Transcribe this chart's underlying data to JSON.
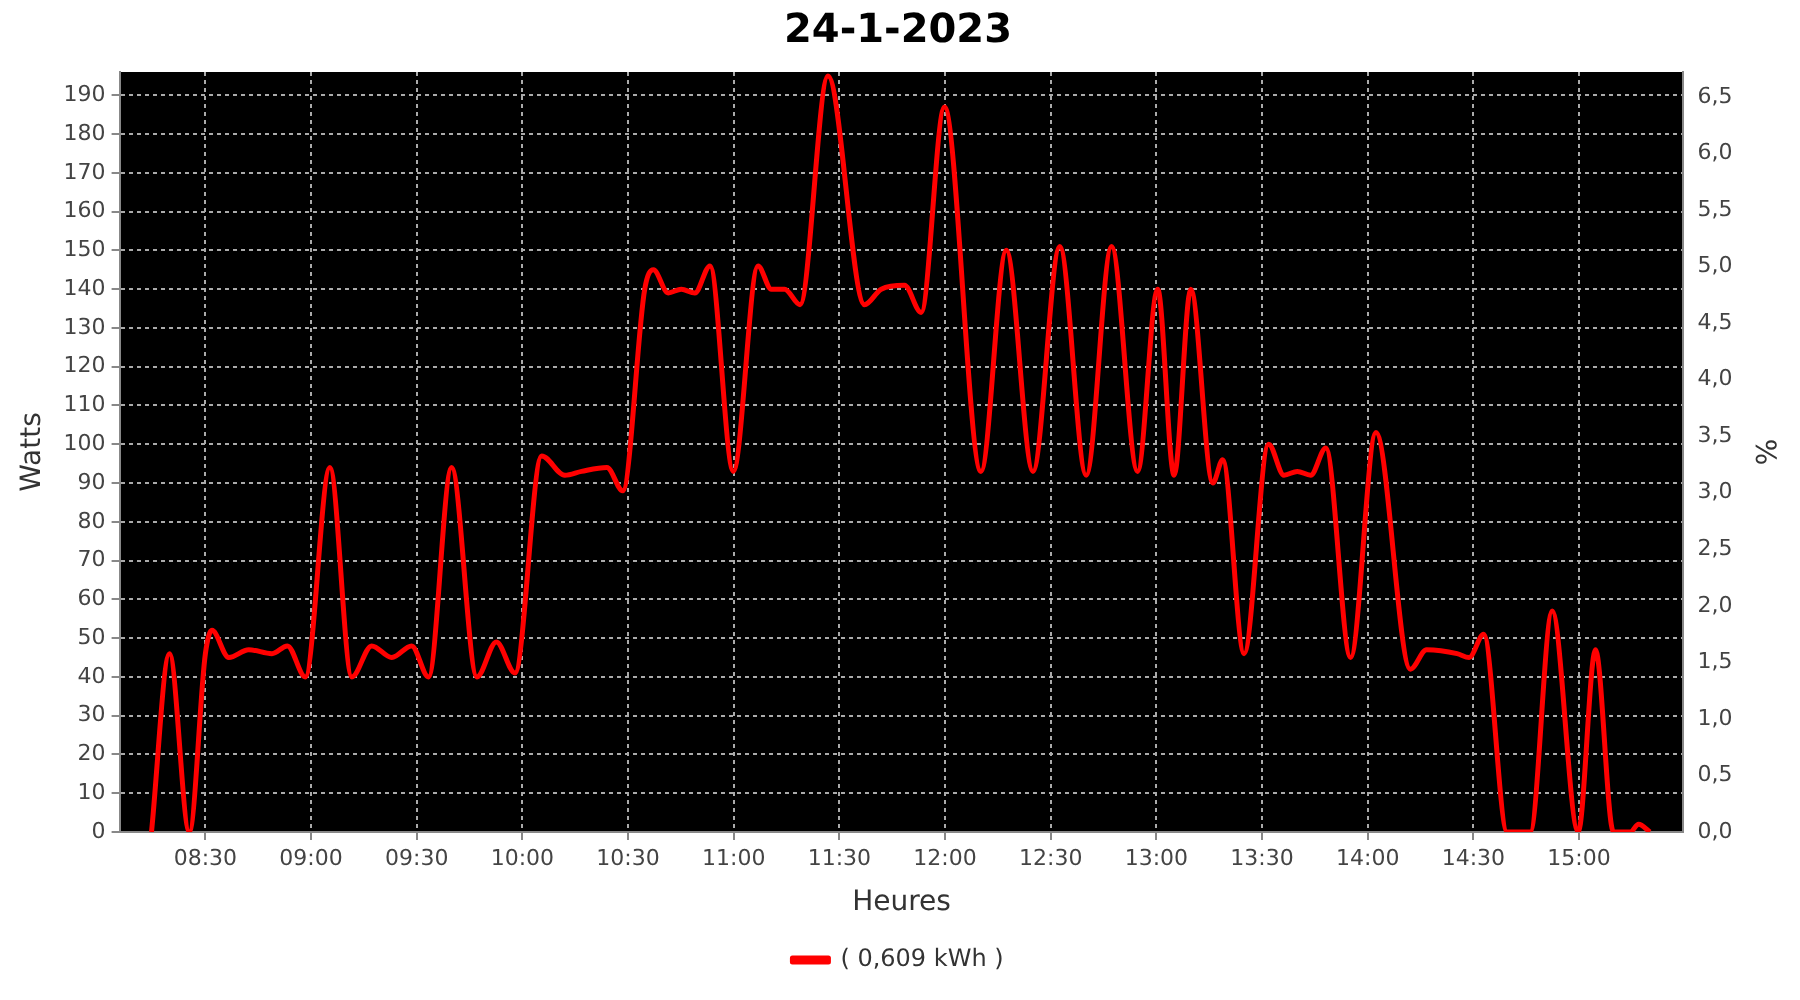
{
  "chart_data": {
    "type": "line",
    "title": "24-1-2023",
    "xlabel": "Heures",
    "ylabel": "Watts",
    "y2label": "%",
    "x": [
      8.245,
      8.33,
      8.424,
      8.5,
      8.531,
      8.611,
      8.705,
      8.815,
      8.888,
      8.973,
      9.089,
      9.193,
      9.287,
      9.382,
      9.476,
      9.556,
      9.665,
      9.785,
      9.877,
      9.965,
      10.091,
      10.201,
      10.28,
      10.4,
      10.475,
      10.579,
      10.62,
      10.69,
      10.752,
      10.816,
      10.888,
      10.998,
      11.115,
      11.178,
      11.241,
      11.314,
      11.446,
      11.619,
      11.698,
      11.808,
      11.887,
      11.997,
      12.17,
      12.29,
      12.416,
      12.543,
      12.668,
      12.788,
      12.911,
      13.006,
      13.084,
      13.163,
      13.267,
      13.314,
      13.415,
      13.531,
      13.604,
      13.667,
      13.73,
      13.802,
      13.919,
      14.039,
      14.202,
      14.279,
      14.423,
      14.48,
      14.549,
      14.66,
      14.707,
      14.769,
      14.873,
      14.996,
      15.078,
      15.163,
      15.242,
      15.282,
      15.336
    ],
    "series": [
      {
        "name": "( 0,609 kWh )",
        "color": "#ff0000",
        "values": [
          0,
          46,
          0,
          46,
          52,
          45,
          47,
          46,
          48,
          40,
          94,
          40,
          48,
          45,
          48,
          40,
          94,
          40,
          49,
          41,
          97,
          92,
          93,
          94,
          88,
          140,
          145,
          139,
          140,
          139,
          146,
          93,
          146,
          140,
          140,
          136,
          195,
          136,
          140,
          141,
          134,
          187,
          93,
          150,
          93,
          151,
          92,
          151,
          93,
          140,
          92,
          140,
          90,
          96,
          46,
          100,
          92,
          93,
          92,
          99,
          45,
          103,
          42,
          47,
          46,
          45,
          51,
          0,
          0,
          0,
          57,
          0,
          47,
          0,
          0,
          2,
          0
        ]
      }
    ],
    "xlim": [
      8.094,
      15.494
    ],
    "xticks": [
      {
        "value": 8.5,
        "label": "08:30"
      },
      {
        "value": 9,
        "label": "09:00"
      },
      {
        "value": 9.5,
        "label": "09:30"
      },
      {
        "value": 10,
        "label": "10:00"
      },
      {
        "value": 10.5,
        "label": "10:30"
      },
      {
        "value": 11,
        "label": "11:00"
      },
      {
        "value": 11.5,
        "label": "11:30"
      },
      {
        "value": 12,
        "label": "12:00"
      },
      {
        "value": 12.5,
        "label": "12:30"
      },
      {
        "value": 13,
        "label": "13:00"
      },
      {
        "value": 13.5,
        "label": "13:30"
      },
      {
        "value": 14,
        "label": "14:00"
      },
      {
        "value": 14.5,
        "label": "14:30"
      },
      {
        "value": 15,
        "label": "15:00"
      }
    ],
    "ylim": [
      0,
      196
    ],
    "yticks": [
      0,
      10,
      20,
      30,
      40,
      50,
      60,
      70,
      80,
      90,
      100,
      110,
      120,
      130,
      140,
      150,
      160,
      170,
      180,
      190
    ],
    "y2lim": [
      0,
      6.72
    ],
    "y2ticks": [
      {
        "value": 0,
        "label": "0,0"
      },
      {
        "value": 0.5,
        "label": "0,5"
      },
      {
        "value": 1,
        "label": "1,0"
      },
      {
        "value": 1.5,
        "label": "1,5"
      },
      {
        "value": 2,
        "label": "2,0"
      },
      {
        "value": 2.5,
        "label": "2,5"
      },
      {
        "value": 3,
        "label": "3,0"
      },
      {
        "value": 3.5,
        "label": "3,5"
      },
      {
        "value": 4,
        "label": "4,0"
      },
      {
        "value": 4.5,
        "label": "4,5"
      },
      {
        "value": 5,
        "label": "5,0"
      },
      {
        "value": 5.5,
        "label": "5,5"
      },
      {
        "value": 6,
        "label": "6,0"
      },
      {
        "value": 6.5,
        "label": "6,5"
      }
    ],
    "grid": true,
    "legend": "bottom",
    "marker": "none",
    "line_style": "solid"
  }
}
